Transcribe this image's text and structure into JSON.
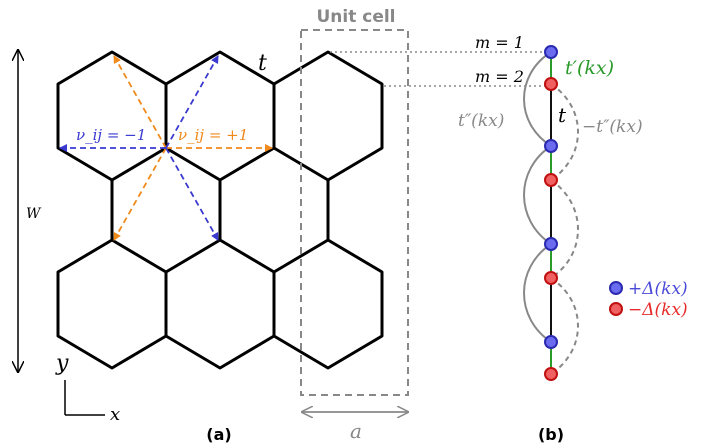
{
  "panel_a": {
    "unit_cell_label": "Unit cell",
    "hopping_label": "t",
    "nu_minus_label": "ν_ij = −1",
    "nu_plus_label": "ν_ij = +1",
    "width_label": "W",
    "axis_y_label": "y",
    "axis_x_label": "x",
    "lattice_const_label": "a",
    "panel_label": "(a)",
    "colors": {
      "nu_minus": "#3a3ad0",
      "nu_plus": "#f08a1c",
      "unit_cell": "#888888"
    }
  },
  "panel_b": {
    "row_labels": [
      "m = 1",
      "m = 2"
    ],
    "t_prime_label": "t′(kx)",
    "t_label": "t",
    "t_dprime_label": "t″(kx)",
    "neg_t_dprime_label": "−t″(kx)",
    "legend": [
      {
        "label": "+Δ(kx)",
        "color": "#4a4ad8"
      },
      {
        "label": "−Δ(kx)",
        "color": "#e82a2a"
      }
    ],
    "panel_label": "(b)",
    "colors": {
      "t_prime": "#2a9a2a",
      "blue_site": "#4a4ad8",
      "red_site": "#e82a2a"
    }
  }
}
